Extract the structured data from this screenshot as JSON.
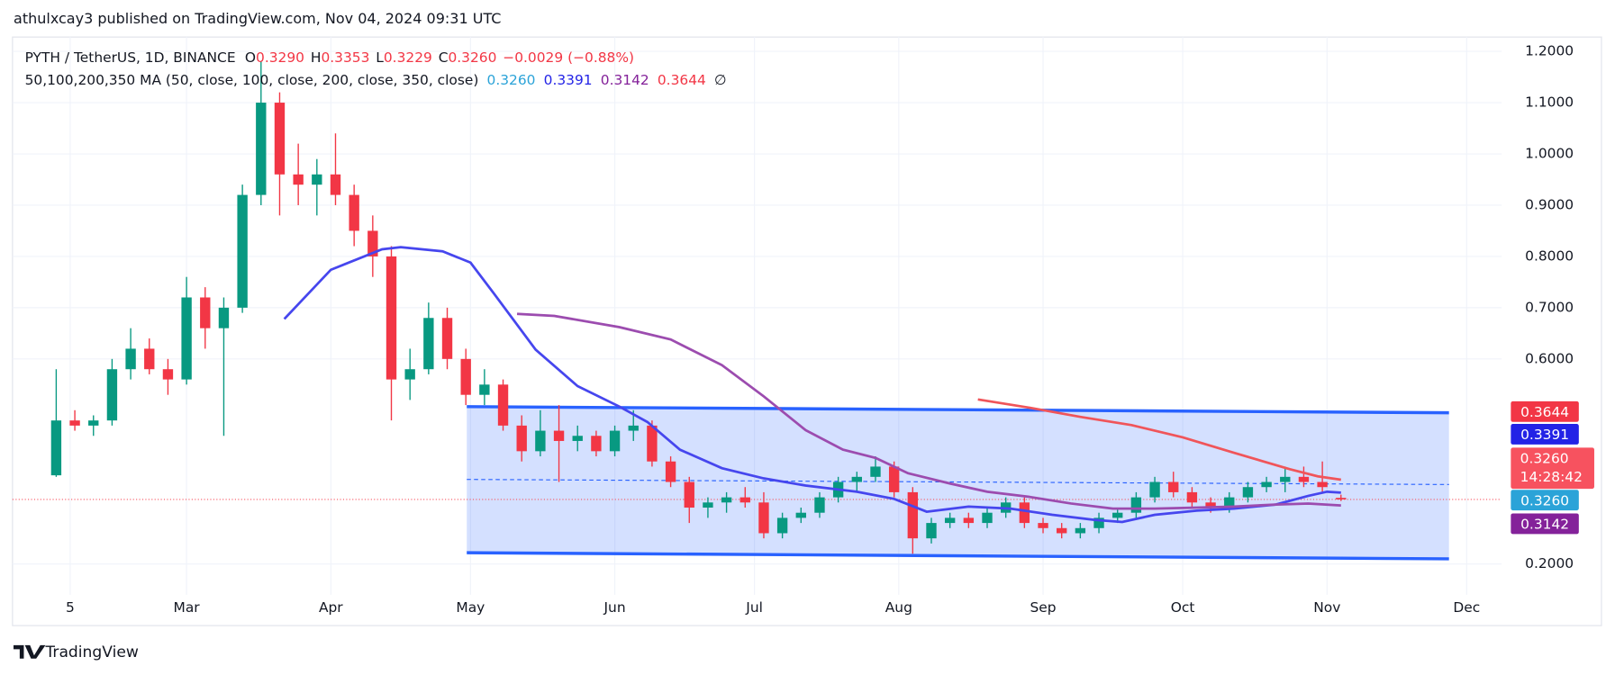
{
  "chart_data": {
    "type": "candlestick",
    "attribution": "athulxcay3 published on TradingView.com, Nov 04, 2024 09:31 UTC",
    "title": "PYTH / TetherUS, 1D, BINANCE",
    "ohlc_legend": [
      {
        "prefix": "O",
        "label": "0.3290"
      },
      {
        "prefix": "H",
        "label": "0.3353"
      },
      {
        "prefix": "L",
        "label": "0.3229"
      },
      {
        "prefix": "C",
        "label": "0.3260"
      }
    ],
    "change_label": "−0.0029 (−0.88%)",
    "indicator": {
      "name": "50,100,200,350 MA (50, close, 100, close, 200, close, 350, close)",
      "values": [
        0.326,
        0.3391,
        0.3142,
        0.3644
      ],
      "value_labels": [
        "0.3260",
        "0.3391",
        "0.3142",
        "0.3644"
      ],
      "colors": [
        "#2ba3d8",
        "#2323e6",
        "#84229a",
        "#f23645"
      ],
      "hidden_symbol": "∅"
    },
    "countdown": "14:28:42",
    "brand": "TradingView",
    "up_color": "#089981",
    "down_color": "#f23645",
    "price_color": "#f7525f",
    "x": [
      -3,
      1,
      5,
      9,
      13,
      17,
      21,
      25,
      29,
      33,
      37,
      41,
      45,
      49,
      53,
      57,
      61,
      65,
      69,
      73,
      77,
      81,
      85,
      89,
      93,
      97,
      101,
      105,
      109,
      113,
      117,
      121,
      125,
      129,
      133,
      137,
      141,
      145,
      149,
      153,
      157,
      161,
      165,
      169,
      173,
      177,
      181,
      185,
      189,
      193,
      197,
      201,
      205,
      209,
      213,
      217,
      221,
      225,
      229,
      233,
      237,
      241,
      245,
      249,
      253,
      257,
      261,
      265,
      269,
      273
    ],
    "open": [
      0.373,
      0.48,
      0.47,
      0.48,
      0.58,
      0.62,
      0.58,
      0.56,
      0.72,
      0.66,
      0.7,
      0.92,
      1.1,
      0.96,
      0.94,
      0.96,
      0.92,
      0.85,
      0.8,
      0.56,
      0.58,
      0.68,
      0.6,
      0.53,
      0.55,
      0.47,
      0.42,
      0.46,
      0.44,
      0.45,
      0.42,
      0.46,
      0.47,
      0.4,
      0.36,
      0.31,
      0.32,
      0.33,
      0.32,
      0.26,
      0.29,
      0.3,
      0.33,
      0.36,
      0.37,
      0.39,
      0.34,
      0.25,
      0.28,
      0.29,
      0.28,
      0.3,
      0.32,
      0.28,
      0.27,
      0.26,
      0.27,
      0.29,
      0.3,
      0.33,
      0.36,
      0.34,
      0.32,
      0.31,
      0.33,
      0.35,
      0.36,
      0.37,
      0.36,
      0.329
    ],
    "high": [
      0.58,
      0.5,
      0.49,
      0.6,
      0.66,
      0.64,
      0.6,
      0.76,
      0.74,
      0.72,
      0.94,
      1.18,
      1.12,
      1.02,
      0.99,
      1.04,
      0.94,
      0.88,
      0.82,
      0.62,
      0.71,
      0.7,
      0.62,
      0.58,
      0.56,
      0.49,
      0.5,
      0.51,
      0.47,
      0.46,
      0.47,
      0.5,
      0.48,
      0.41,
      0.37,
      0.33,
      0.34,
      0.35,
      0.34,
      0.3,
      0.31,
      0.34,
      0.37,
      0.38,
      0.41,
      0.4,
      0.35,
      0.29,
      0.3,
      0.3,
      0.31,
      0.33,
      0.33,
      0.29,
      0.28,
      0.28,
      0.3,
      0.31,
      0.34,
      0.37,
      0.38,
      0.35,
      0.33,
      0.34,
      0.36,
      0.37,
      0.39,
      0.39,
      0.4,
      0.3353
    ],
    "low": [
      0.37,
      0.46,
      0.45,
      0.47,
      0.56,
      0.57,
      0.53,
      0.55,
      0.62,
      0.45,
      0.69,
      0.9,
      0.88,
      0.9,
      0.88,
      0.9,
      0.82,
      0.76,
      0.48,
      0.52,
      0.57,
      0.58,
      0.51,
      0.51,
      0.46,
      0.4,
      0.41,
      0.36,
      0.42,
      0.41,
      0.41,
      0.44,
      0.39,
      0.35,
      0.28,
      0.29,
      0.3,
      0.31,
      0.25,
      0.25,
      0.28,
      0.29,
      0.32,
      0.34,
      0.36,
      0.33,
      0.22,
      0.24,
      0.27,
      0.27,
      0.27,
      0.29,
      0.27,
      0.26,
      0.25,
      0.25,
      0.26,
      0.28,
      0.29,
      0.32,
      0.33,
      0.31,
      0.3,
      0.3,
      0.32,
      0.34,
      0.34,
      0.35,
      0.34,
      0.3229
    ],
    "close": [
      0.48,
      0.47,
      0.48,
      0.58,
      0.62,
      0.58,
      0.56,
      0.72,
      0.66,
      0.7,
      0.92,
      1.1,
      0.96,
      0.94,
      0.96,
      0.92,
      0.85,
      0.8,
      0.56,
      0.58,
      0.68,
      0.6,
      0.53,
      0.55,
      0.47,
      0.42,
      0.46,
      0.44,
      0.45,
      0.42,
      0.46,
      0.47,
      0.4,
      0.36,
      0.31,
      0.32,
      0.33,
      0.32,
      0.26,
      0.29,
      0.3,
      0.33,
      0.36,
      0.37,
      0.39,
      0.34,
      0.25,
      0.28,
      0.29,
      0.28,
      0.3,
      0.32,
      0.28,
      0.27,
      0.26,
      0.27,
      0.29,
      0.3,
      0.33,
      0.36,
      0.34,
      0.32,
      0.31,
      0.33,
      0.35,
      0.36,
      0.37,
      0.36,
      0.35,
      0.326
    ],
    "lines": [
      {
        "color": "#4646ee",
        "x": [
          46,
          56,
          67,
          71,
          80,
          86,
          91,
          100,
          109,
          118,
          124,
          131,
          140,
          149,
          158,
          169,
          177,
          184,
          193,
          202,
          211,
          220,
          226,
          233,
          242,
          250,
          259,
          266,
          270,
          273
        ],
        "values": [
          0.678,
          0.774,
          0.814,
          0.818,
          0.81,
          0.788,
          0.728,
          0.618,
          0.547,
          0.507,
          0.477,
          0.423,
          0.387,
          0.367,
          0.353,
          0.341,
          0.327,
          0.302,
          0.312,
          0.308,
          0.296,
          0.286,
          0.282,
          0.296,
          0.304,
          0.308,
          0.316,
          0.333,
          0.341,
          0.3391
        ]
      },
      {
        "color": "#9c4caf",
        "x": [
          96,
          104,
          118,
          129,
          140,
          149,
          158,
          166,
          173,
          180,
          189,
          197,
          206,
          215,
          224,
          233,
          242,
          250,
          259,
          266,
          273
        ],
        "values": [
          0.688,
          0.684,
          0.662,
          0.638,
          0.588,
          0.527,
          0.461,
          0.423,
          0.407,
          0.377,
          0.357,
          0.341,
          0.331,
          0.318,
          0.308,
          0.308,
          0.31,
          0.312,
          0.316,
          0.318,
          0.3142
        ]
      },
      {
        "color": "#f0555a",
        "x": [
          195,
          206,
          217,
          228,
          239,
          250,
          262,
          268,
          273
        ],
        "values": [
          0.521,
          0.505,
          0.487,
          0.471,
          0.447,
          0.417,
          0.385,
          0.371,
          0.3644
        ]
      }
    ],
    "channel": {
      "color": "#2962ff",
      "x": [
        85.2,
        296.2
      ],
      "top": [
        0.507,
        0.495
      ],
      "bottom": [
        0.222,
        0.21
      ],
      "mid": [
        0.365,
        0.355
      ]
    },
    "xlim": [
      -12.39,
      307.5
    ],
    "ylim": [
      0.14,
      1.228
    ],
    "xticks": [
      {
        "value": 0,
        "label": "5"
      },
      {
        "value": 25,
        "label": "Mar"
      },
      {
        "value": 56,
        "label": "Apr"
      },
      {
        "value": 86,
        "label": "May"
      },
      {
        "value": 117,
        "label": "Jun"
      },
      {
        "value": 147,
        "label": "Jul"
      },
      {
        "value": 178,
        "label": "Aug"
      },
      {
        "value": 209,
        "label": "Sep"
      },
      {
        "value": 239,
        "label": "Oct"
      },
      {
        "value": 270,
        "label": "Nov"
      },
      {
        "value": 300,
        "label": "Dec"
      }
    ],
    "yticks": [
      {
        "value": 1.2,
        "label": "1.2000"
      },
      {
        "value": 1.1,
        "label": "1.1000"
      },
      {
        "value": 1.0,
        "label": "1.0000"
      },
      {
        "value": 0.9,
        "label": "0.9000"
      },
      {
        "value": 0.8,
        "label": "0.8000"
      },
      {
        "value": 0.7,
        "label": "0.7000"
      },
      {
        "value": 0.6,
        "label": "0.6000"
      },
      {
        "value": 0.2,
        "label": "0.2000"
      }
    ],
    "grid": true
  }
}
